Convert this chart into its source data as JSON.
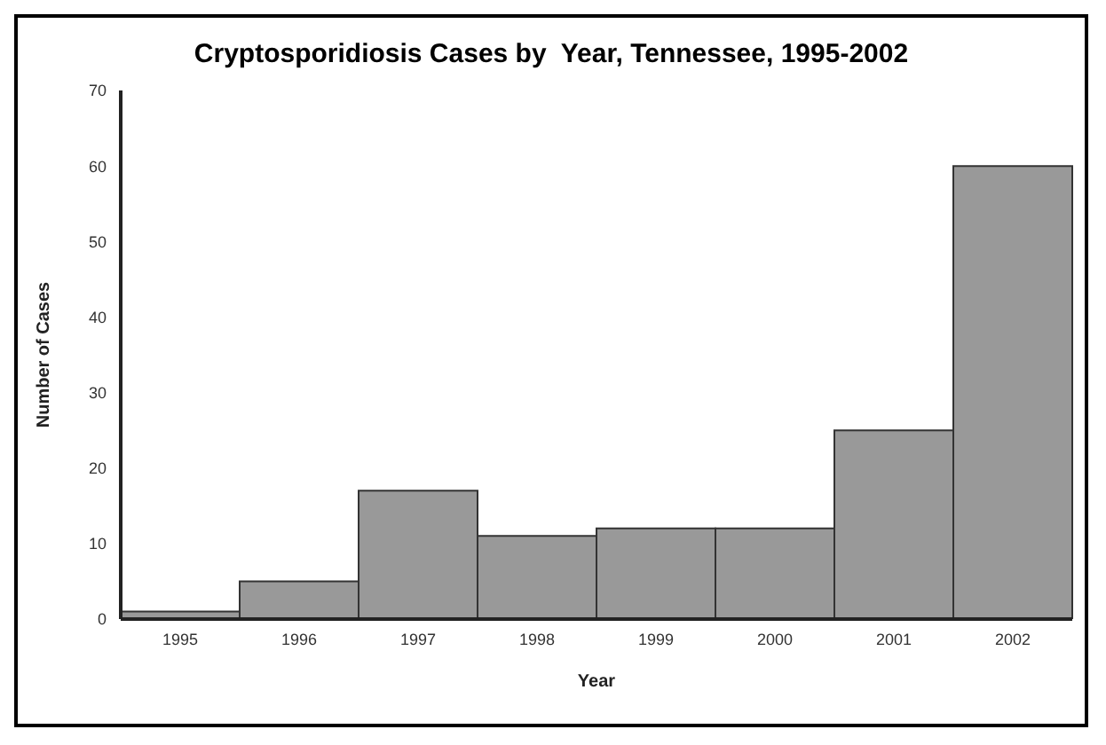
{
  "chart_data": {
    "type": "bar",
    "title": "Cryptosporidiosis Cases by  Year, Tennessee, 1995-2002",
    "xlabel": "Year",
    "ylabel": "Number of Cases",
    "categories": [
      "1995",
      "1996",
      "1997",
      "1998",
      "1999",
      "2000",
      "2001",
      "2002"
    ],
    "values": [
      1,
      5,
      17,
      11,
      12,
      12,
      25,
      60
    ],
    "color": "#999999",
    "ylim": [
      0,
      70
    ],
    "yticks": [
      0,
      10,
      20,
      30,
      40,
      50,
      60,
      70
    ],
    "grid": false
  }
}
